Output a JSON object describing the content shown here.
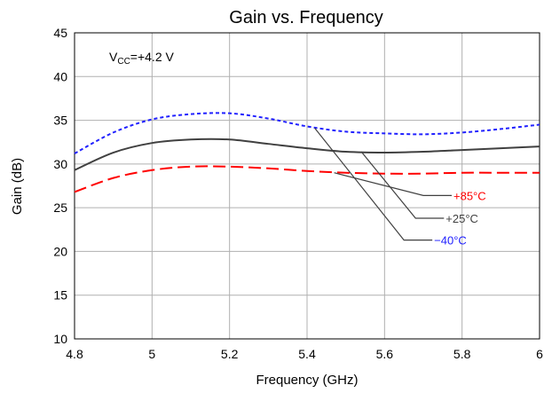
{
  "chart_data": {
    "type": "line",
    "title": "Gain vs. Frequency",
    "xlabel": "Frequency (GHz)",
    "ylabel": "Gain (dB)",
    "xlim": [
      4.8,
      6.0
    ],
    "ylim": [
      10,
      45
    ],
    "x_ticks": [
      4.8,
      5.0,
      5.2,
      5.4,
      5.6,
      5.8,
      6.0
    ],
    "x_tick_labels": [
      "4.8",
      "5",
      "5.2",
      "5.4",
      "5.6",
      "5.8",
      "6"
    ],
    "y_ticks": [
      10,
      15,
      20,
      25,
      30,
      35,
      40,
      45
    ],
    "y_tick_labels": [
      "10",
      "15",
      "20",
      "25",
      "30",
      "35",
      "40",
      "45"
    ],
    "grid": true,
    "annotation": {
      "v": "V",
      "sub": "CC",
      "rest": "=+4.2 V"
    },
    "series": [
      {
        "name": "+85°C",
        "color": "#ff0000",
        "dash": "long-dash",
        "x": [
          4.8,
          4.9,
          5.0,
          5.1,
          5.2,
          5.3,
          5.4,
          5.5,
          5.6,
          5.7,
          5.8,
          5.9,
          6.0
        ],
        "y": [
          26.8,
          28.4,
          29.3,
          29.7,
          29.7,
          29.5,
          29.2,
          29.0,
          28.9,
          28.9,
          29.0,
          29.0,
          29.0
        ]
      },
      {
        "name": "+25°C",
        "color": "#404040",
        "dash": "solid",
        "x": [
          4.8,
          4.9,
          5.0,
          5.1,
          5.2,
          5.3,
          5.4,
          5.5,
          5.6,
          5.7,
          5.8,
          5.9,
          6.0
        ],
        "y": [
          29.3,
          31.3,
          32.4,
          32.8,
          32.8,
          32.3,
          31.8,
          31.4,
          31.3,
          31.4,
          31.6,
          31.8,
          32.0
        ]
      },
      {
        "name": "−40°C",
        "color": "#2020ff",
        "dash": "short-dash",
        "x": [
          4.8,
          4.9,
          5.0,
          5.1,
          5.2,
          5.3,
          5.4,
          5.5,
          5.6,
          5.7,
          5.8,
          5.9,
          6.0
        ],
        "y": [
          31.2,
          33.6,
          35.1,
          35.7,
          35.8,
          35.2,
          34.3,
          33.7,
          33.5,
          33.4,
          33.6,
          34.0,
          34.5
        ]
      }
    ],
    "legend_callouts": [
      {
        "series": "+85°C",
        "anchor_x": 5.47,
        "anchor_y": 29.0,
        "elbow_x": 5.7,
        "elbow_y": 26.4,
        "label_y": 26.4
      },
      {
        "series": "+25°C",
        "anchor_x": 5.54,
        "anchor_y": 31.4,
        "elbow_x": 5.68,
        "elbow_y": 23.8,
        "label_y": 23.8
      },
      {
        "series": "−40°C",
        "anchor_x": 5.42,
        "anchor_y": 34.1,
        "elbow_x": 5.65,
        "elbow_y": 21.3,
        "label_y": 21.3
      }
    ]
  }
}
